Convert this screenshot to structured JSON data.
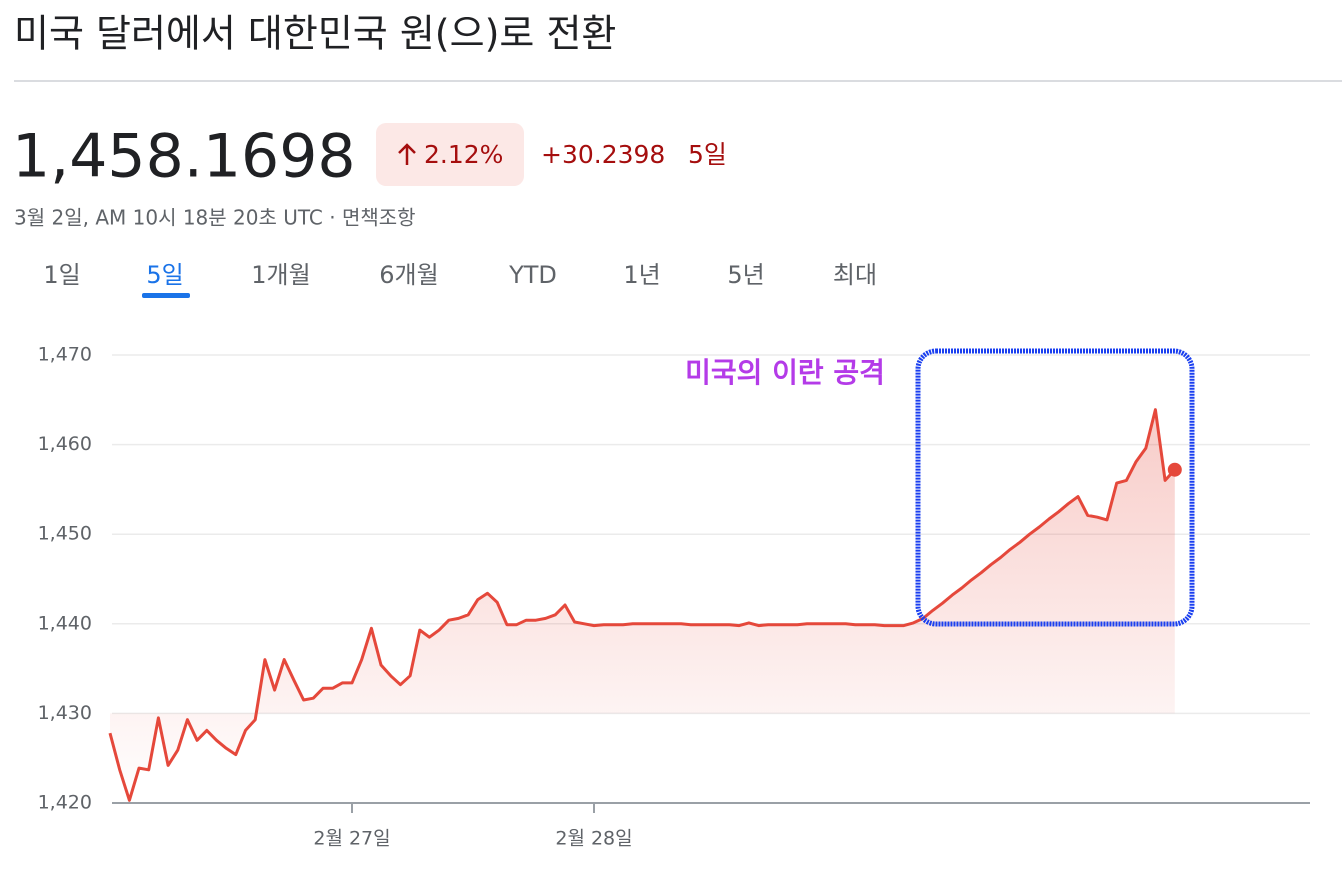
{
  "header": {
    "title": "미국 달러에서 대한민국 원(으)로 전환",
    "price": "1,458.1698",
    "change_percent": "2.12%",
    "change_value": "+30.2398",
    "change_period": "5일",
    "timestamp": "3월 2일, AM 10시 18분 20초 UTC · 면책조항"
  },
  "tabs": [
    "1일",
    "5일",
    "1개월",
    "6개월",
    "YTD",
    "1년",
    "5년",
    "최대"
  ],
  "chart_data": {
    "type": "line",
    "annotation": "미국의 이란 공격",
    "categories": [
      null,
      null,
      null,
      null,
      null,
      null,
      null,
      null,
      null,
      null,
      null,
      null,
      null,
      null,
      null,
      null,
      null,
      null,
      null,
      null,
      null,
      null,
      null,
      null,
      null,
      "2월 27일",
      null,
      null,
      null,
      null,
      null,
      null,
      null,
      null,
      null,
      null,
      null,
      null,
      null,
      null,
      null,
      null,
      null,
      null,
      null,
      null,
      null,
      null,
      null,
      null,
      "2월 28일",
      null,
      null,
      null,
      null,
      null,
      null,
      null,
      null,
      null,
      null,
      null,
      null,
      null,
      null,
      null,
      null,
      null,
      null,
      null,
      null,
      null,
      null,
      null,
      null,
      null,
      null,
      null,
      null,
      null,
      null,
      null,
      null,
      null,
      null,
      null,
      null,
      null,
      null,
      null,
      null,
      null,
      null,
      null,
      null,
      null,
      null,
      null,
      null,
      null,
      null,
      null,
      null,
      null,
      null,
      null,
      null,
      null,
      null,
      null,
      null
    ],
    "series": [
      {
        "color": "#e5483b",
        "values": [
          1427.8,
          1423.7,
          1420.3,
          1423.9,
          1423.7,
          1429.5,
          1424.2,
          1425.9,
          1429.3,
          1427.0,
          1428.1,
          1427.0,
          1426.1,
          1425.4,
          1428.1,
          1429.3,
          1436.0,
          1432.6,
          1436.0,
          1433.7,
          1431.5,
          1431.7,
          1432.8,
          1432.8,
          1433.4,
          1433.4,
          1436.0,
          1439.5,
          1435.4,
          1434.2,
          1433.2,
          1434.2,
          1439.3,
          1438.5,
          1439.3,
          1440.4,
          1440.6,
          1441.0,
          1442.7,
          1443.4,
          1442.4,
          1439.9,
          1439.9,
          1440.4,
          1440.4,
          1440.6,
          1441.0,
          1442.1,
          1440.2,
          1440.0,
          1439.8,
          1439.9,
          1439.9,
          1439.9,
          1440.0,
          1440.0,
          1440.0,
          1440.0,
          1440.0,
          1440.0,
          1439.9,
          1439.9,
          1439.9,
          1439.9,
          1439.9,
          1439.8,
          1440.1,
          1439.8,
          1439.9,
          1439.9,
          1439.9,
          1439.9,
          1440.0,
          1440.0,
          1440.0,
          1440.0,
          1440.0,
          1439.9,
          1439.9,
          1439.9,
          1439.8,
          1439.8,
          1439.8,
          1440.1,
          1440.6,
          1441.5,
          1442.3,
          1443.2,
          1444.0,
          1444.9,
          1445.7,
          1446.6,
          1447.4,
          1448.3,
          1449.1,
          1450.0,
          1450.8,
          1451.7,
          1452.5,
          1453.4,
          1454.2,
          1452.1,
          1451.9,
          1451.6,
          1455.7,
          1456.0,
          1458.1,
          1459.6,
          1463.9,
          1456.0,
          1457.2
        ]
      }
    ],
    "ylim": [
      1420,
      1470
    ],
    "yticks": [
      {
        "value": 1420,
        "label": "1,420"
      },
      {
        "value": 1430,
        "label": "1,430"
      },
      {
        "value": 1440,
        "label": "1,440"
      },
      {
        "value": 1450,
        "label": "1,450"
      },
      {
        "value": 1460,
        "label": "1,460"
      },
      {
        "value": 1470,
        "label": "1,470"
      }
    ],
    "grid": true
  }
}
